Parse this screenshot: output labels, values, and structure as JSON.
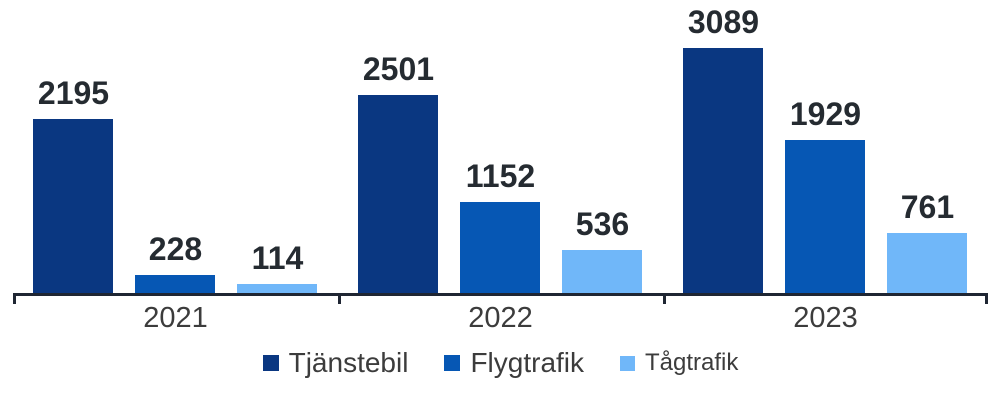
{
  "chart_data": {
    "type": "bar",
    "title": "",
    "xlabel": "",
    "ylabel": "",
    "categories": [
      "2021",
      "2022",
      "2023"
    ],
    "series": [
      {
        "name": "Tjänstebil",
        "color": "#0a3781",
        "values": [
          2195,
          2501,
          3089
        ]
      },
      {
        "name": "Flygtrafik",
        "color": "#0657b4",
        "values": [
          228,
          1152,
          1929
        ]
      },
      {
        "name": "Tågtrafik",
        "color": "#70b7f9",
        "values": [
          114,
          536,
          761
        ]
      }
    ],
    "ylim": [
      0,
      3089
    ],
    "grid": false,
    "data_labels": true,
    "legend_position": "bottom"
  },
  "colors": {
    "axis": "#1f2633",
    "data_label": "#252b31",
    "category_label": "#3c3c3c",
    "background": "#ffffff"
  }
}
